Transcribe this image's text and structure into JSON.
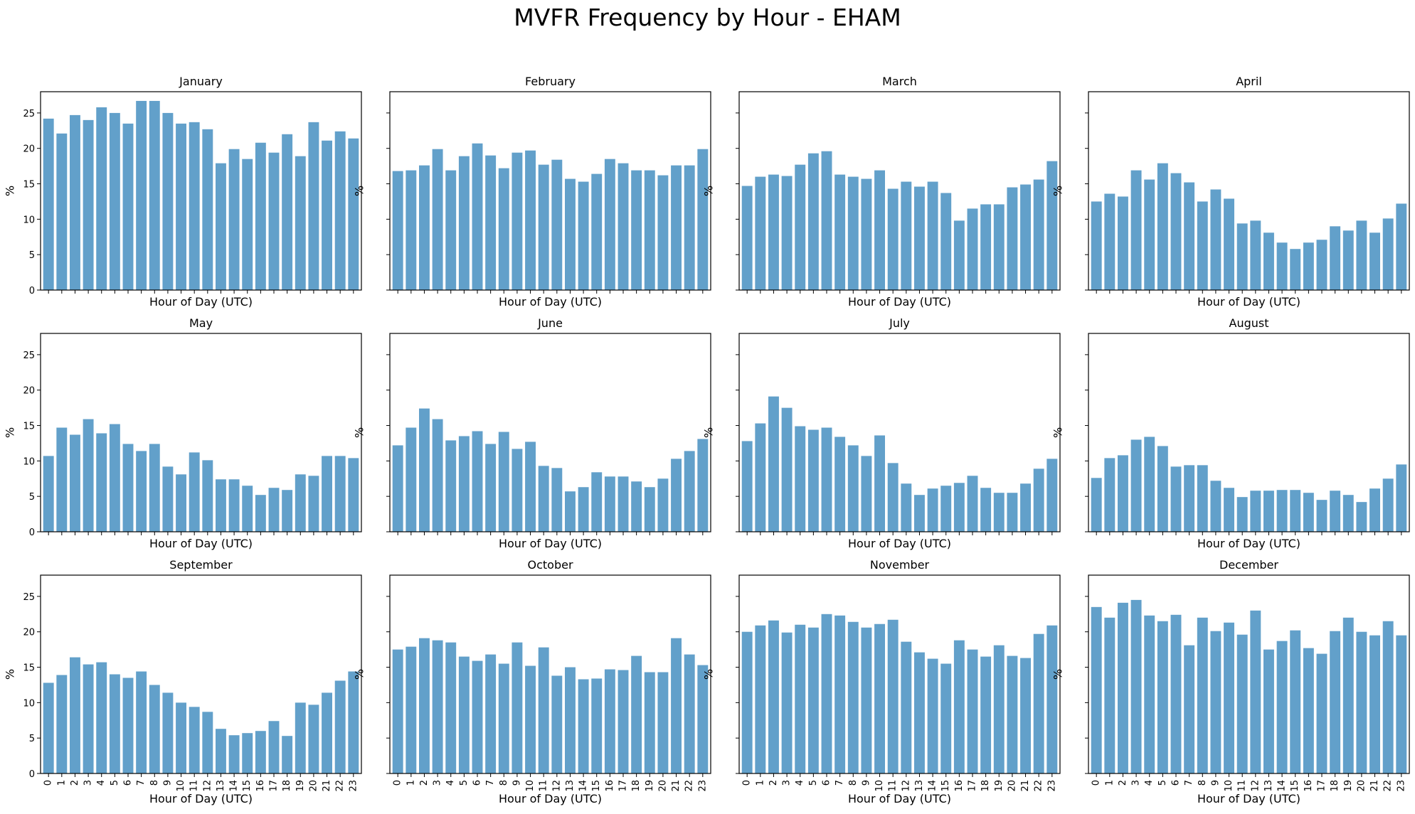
{
  "figure": {
    "title": "MVFR Frequency by Hour - EHAM"
  },
  "chart_data": {
    "type": "bar",
    "layout": "3x4 grid, shared y-axis",
    "xlabel": "Hour of Day (UTC)",
    "ylabel": "%",
    "ylim": [
      0,
      28
    ],
    "yticks": [
      0,
      5,
      10,
      15,
      20,
      25
    ],
    "categories": [
      "0",
      "1",
      "2",
      "3",
      "4",
      "5",
      "6",
      "7",
      "8",
      "9",
      "10",
      "11",
      "12",
      "13",
      "14",
      "15",
      "16",
      "17",
      "18",
      "19",
      "20",
      "21",
      "22",
      "23"
    ],
    "bar_color": "#1f77b4",
    "panels": [
      {
        "title": "January",
        "values": [
          24.2,
          22.1,
          24.7,
          24.0,
          25.8,
          25.0,
          23.5,
          26.7,
          26.7,
          25.0,
          23.5,
          23.7,
          22.7,
          17.9,
          19.9,
          18.5,
          20.8,
          19.4,
          22.0,
          18.9,
          23.7,
          21.1,
          22.4,
          21.4
        ]
      },
      {
        "title": "February",
        "values": [
          16.8,
          16.9,
          17.6,
          19.9,
          16.9,
          18.9,
          20.7,
          19.0,
          17.2,
          19.4,
          19.7,
          17.7,
          18.4,
          15.7,
          15.3,
          16.4,
          18.5,
          17.9,
          16.9,
          16.9,
          16.2,
          17.6,
          17.6,
          19.9
        ]
      },
      {
        "title": "March",
        "values": [
          14.7,
          16.0,
          16.3,
          16.1,
          17.7,
          19.3,
          19.6,
          16.3,
          16.0,
          15.7,
          16.9,
          14.3,
          15.3,
          14.6,
          15.3,
          13.7,
          9.8,
          11.5,
          12.1,
          12.1,
          14.5,
          14.9,
          15.6,
          18.2
        ]
      },
      {
        "title": "April",
        "values": [
          12.5,
          13.6,
          13.2,
          16.9,
          15.6,
          17.9,
          16.5,
          15.2,
          12.5,
          14.2,
          12.9,
          9.4,
          9.8,
          8.1,
          6.7,
          5.8,
          6.7,
          7.1,
          9.0,
          8.4,
          9.8,
          8.1,
          10.1,
          12.2
        ]
      },
      {
        "title": "May",
        "values": [
          10.7,
          14.7,
          13.7,
          15.9,
          13.9,
          15.2,
          12.4,
          11.4,
          12.4,
          9.2,
          8.1,
          11.2,
          10.1,
          7.4,
          7.4,
          6.5,
          5.2,
          6.2,
          5.9,
          8.1,
          7.9,
          10.7,
          10.7,
          10.4
        ]
      },
      {
        "title": "June",
        "values": [
          12.2,
          14.7,
          17.4,
          15.9,
          12.9,
          13.5,
          14.2,
          12.4,
          14.1,
          11.7,
          12.7,
          9.3,
          9.0,
          5.7,
          6.3,
          8.4,
          7.8,
          7.8,
          7.1,
          6.3,
          7.5,
          10.3,
          11.4,
          13.1
        ]
      },
      {
        "title": "July",
        "values": [
          12.8,
          15.3,
          19.1,
          17.5,
          14.9,
          14.4,
          14.7,
          13.4,
          12.2,
          10.7,
          13.6,
          9.7,
          6.8,
          5.2,
          6.1,
          6.5,
          6.9,
          7.9,
          6.2,
          5.5,
          5.5,
          6.8,
          8.9,
          10.3
        ]
      },
      {
        "title": "August",
        "values": [
          7.6,
          10.4,
          10.8,
          13.0,
          13.4,
          12.1,
          9.2,
          9.4,
          9.4,
          7.2,
          6.2,
          4.9,
          5.8,
          5.8,
          5.9,
          5.9,
          5.5,
          4.5,
          5.8,
          5.2,
          4.2,
          6.1,
          7.5,
          9.5
        ]
      },
      {
        "title": "September",
        "values": [
          12.8,
          13.9,
          16.4,
          15.4,
          15.7,
          14.0,
          13.5,
          14.4,
          12.5,
          11.4,
          10.0,
          9.4,
          8.7,
          6.3,
          5.4,
          5.7,
          6.0,
          7.4,
          5.3,
          10.0,
          9.7,
          11.4,
          13.1,
          14.4
        ]
      },
      {
        "title": "October",
        "values": [
          17.5,
          17.9,
          19.1,
          18.8,
          18.5,
          16.5,
          15.9,
          16.8,
          15.5,
          18.5,
          15.2,
          17.8,
          13.8,
          15.0,
          13.3,
          13.4,
          14.7,
          14.6,
          16.6,
          14.3,
          14.3,
          19.1,
          16.8,
          15.3
        ]
      },
      {
        "title": "November",
        "values": [
          20.0,
          20.9,
          21.6,
          19.9,
          21.0,
          20.6,
          22.5,
          22.3,
          21.4,
          20.6,
          21.1,
          21.7,
          18.6,
          17.1,
          16.2,
          15.5,
          18.8,
          17.5,
          16.5,
          18.1,
          16.6,
          16.3,
          19.7,
          20.9
        ]
      },
      {
        "title": "December",
        "values": [
          23.5,
          22.0,
          24.1,
          24.5,
          22.3,
          21.5,
          22.4,
          18.1,
          22.0,
          20.1,
          21.3,
          19.6,
          23.0,
          17.5,
          18.7,
          20.2,
          17.7,
          16.9,
          20.1,
          22.0,
          20.0,
          19.5,
          21.5,
          19.5
        ]
      }
    ]
  }
}
